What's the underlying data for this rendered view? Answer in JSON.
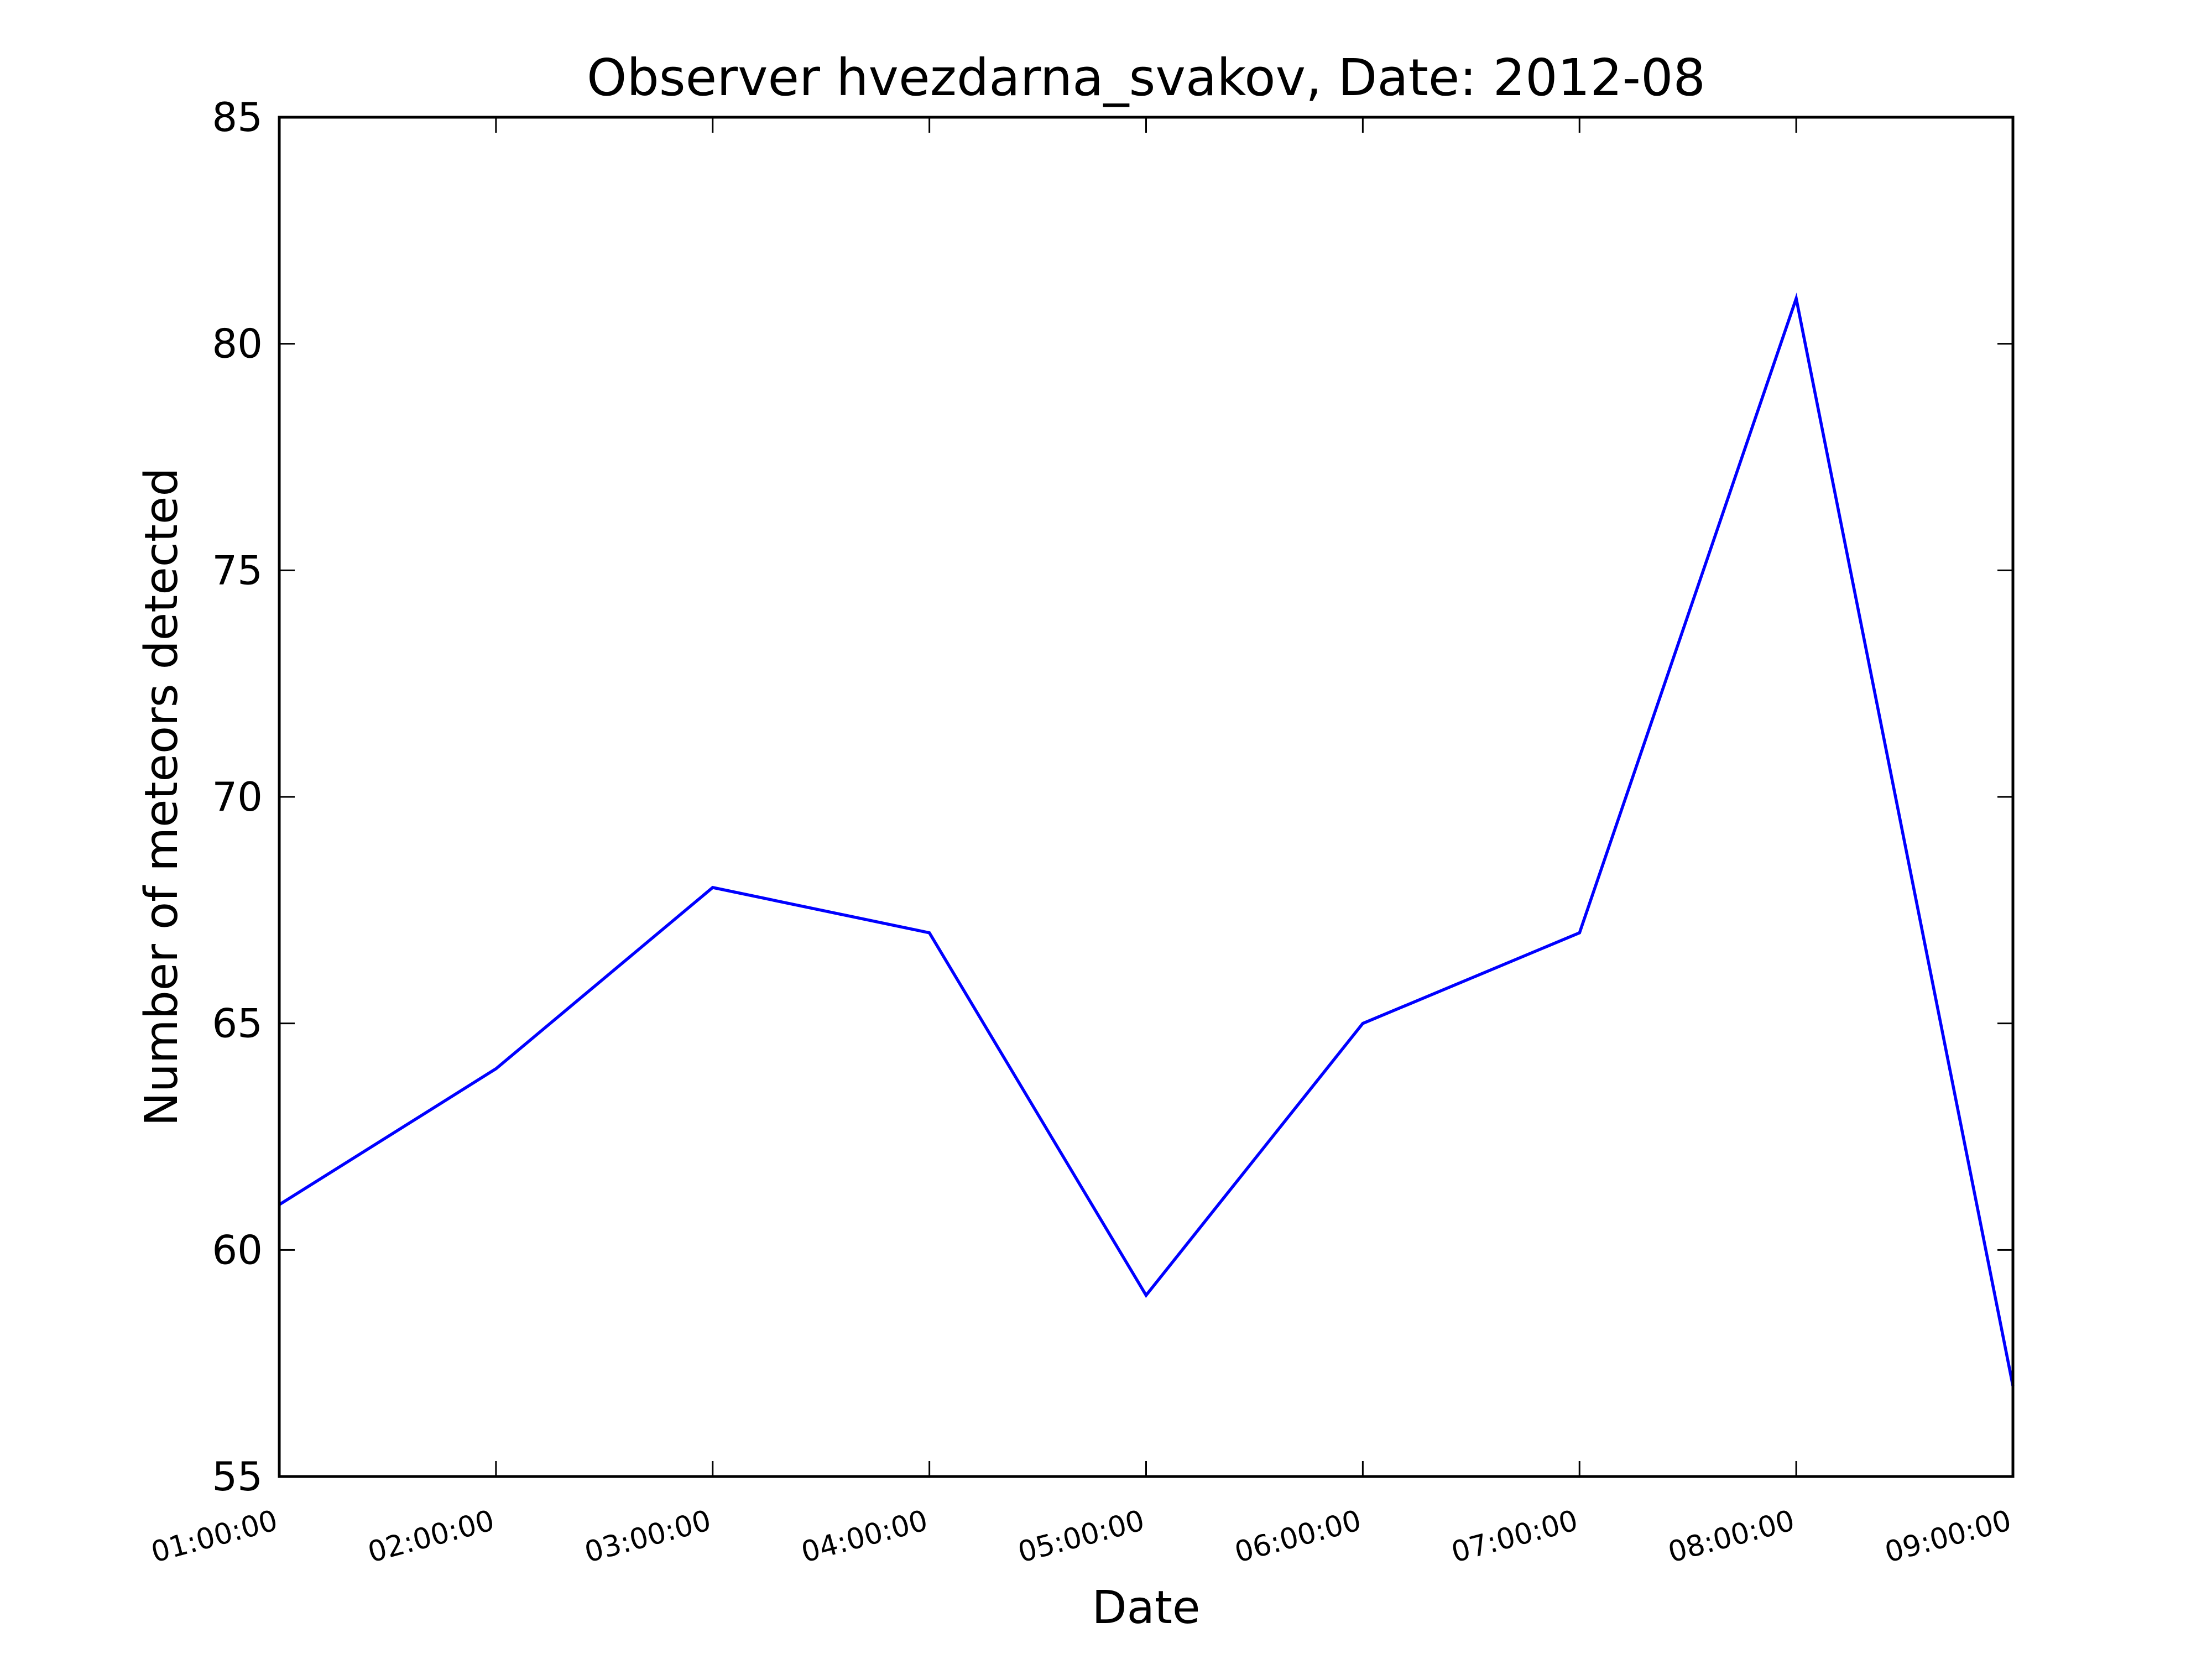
{
  "chart_data": {
    "type": "line",
    "title": "Observer hvezdarna_svakov, Date: 2012-08",
    "xlabel": "Date",
    "ylabel": "Number of meteors detected",
    "x": [
      "01:00:00",
      "02:00:00",
      "03:00:00",
      "04:00:00",
      "05:00:00",
      "06:00:00",
      "07:00:00",
      "08:00:00",
      "09:00:00"
    ],
    "series": [
      {
        "values": [
          61,
          64,
          68,
          67,
          59,
          65,
          67,
          81,
          57
        ],
        "color": "#0000ff"
      }
    ],
    "ylim": [
      55,
      85
    ],
    "yticks": [
      55,
      60,
      65,
      70,
      75,
      80,
      85
    ],
    "grid": false
  }
}
